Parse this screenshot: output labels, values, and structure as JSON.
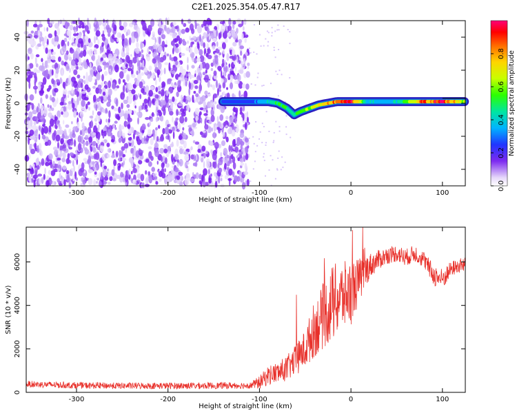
{
  "chart_data": [
    {
      "type": "heatmap",
      "title": "C2E1.2025.354.05.47.R17",
      "xlabel": "Height of straight line (km)",
      "ylabel": "Frequency (Hz)",
      "xlim": [
        -355,
        125
      ],
      "ylim": [
        -50,
        50
      ],
      "xticks": [
        -300,
        -200,
        -100,
        0,
        100
      ],
      "yticks": [
        -40,
        -20,
        0,
        20,
        40
      ],
      "noise_region_km": [
        -355,
        -112
      ],
      "signal_trace": {
        "x": [
          -140,
          -110,
          -90,
          -80,
          -70,
          -62,
          -55,
          -45,
          -35,
          -25,
          -15,
          0,
          20,
          50,
          80,
          100,
          125
        ],
        "frequency": [
          1,
          1,
          1,
          0,
          -3,
          -7,
          -5,
          -3,
          -1,
          0,
          1,
          1,
          1,
          1,
          1,
          1,
          1
        ],
        "amplitude": [
          0.3,
          0.35,
          0.45,
          0.6,
          0.6,
          0.55,
          0.6,
          0.7,
          0.75,
          0.85,
          0.95,
          1.0,
          0.45,
          0.45,
          0.95,
          1.0,
          0.7
        ]
      },
      "colorbar": {
        "label": "Normalized spectral amplitude",
        "range": [
          0,
          1
        ],
        "ticks": [
          "0.0",
          "0.2",
          "0.4",
          "0.6",
          "0.8"
        ]
      }
    },
    {
      "type": "line",
      "title": "",
      "xlabel": "Height of straight line (km)",
      "ylabel": "SNR (10 * v/v)",
      "xlim": [
        -355,
        125
      ],
      "ylim": [
        0,
        7600
      ],
      "xticks": [
        -300,
        -200,
        -100,
        0,
        100
      ],
      "yticks": [
        0,
        2000,
        4000,
        6000
      ],
      "color": "#e8302a",
      "series": [
        {
          "name": "SNR",
          "x": [
            -355,
            -300,
            -250,
            -200,
            -150,
            -110,
            -100,
            -90,
            -80,
            -70,
            -60,
            -50,
            -40,
            -30,
            -20,
            -10,
            0,
            10,
            20,
            30,
            40,
            50,
            60,
            70,
            80,
            90,
            100,
            110,
            125
          ],
          "values": [
            380,
            320,
            300,
            300,
            310,
            320,
            450,
            800,
            900,
            1100,
            1500,
            2000,
            2900,
            3500,
            4100,
            4400,
            4600,
            5200,
            5800,
            6100,
            6300,
            6400,
            6200,
            6400,
            6100,
            5400,
            5200,
            5700,
            5900
          ],
          "noise": [
            150,
            150,
            150,
            150,
            150,
            150,
            300,
            450,
            500,
            600,
            700,
            900,
            1300,
            1500,
            1800,
            1600,
            1500,
            1000,
            600,
            450,
            400,
            400,
            400,
            400,
            400,
            500,
            500,
            350,
            350
          ]
        }
      ]
    }
  ]
}
